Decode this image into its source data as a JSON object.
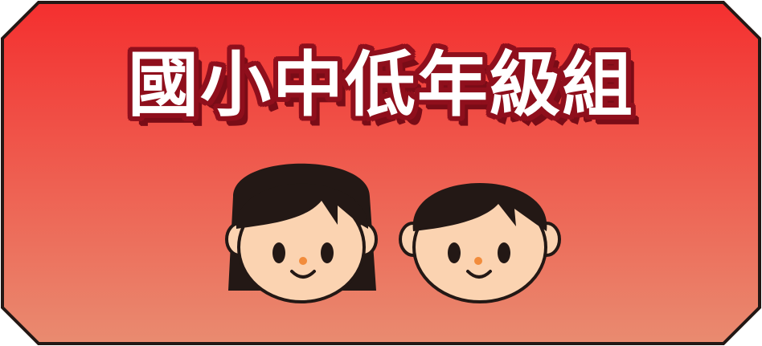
{
  "banner": {
    "title": "國小中低年級組",
    "colors": {
      "gradient_top": "#f42f2f",
      "gradient_bottom": "#e98b70",
      "border": "#231815",
      "title_fill": "#ffffff",
      "title_outline": "#8f0f1c",
      "hair": "#231815",
      "skin": "#fbd3b1",
      "nose": "#f28c3c"
    },
    "icons": [
      "girl-face-icon",
      "boy-face-icon"
    ]
  }
}
